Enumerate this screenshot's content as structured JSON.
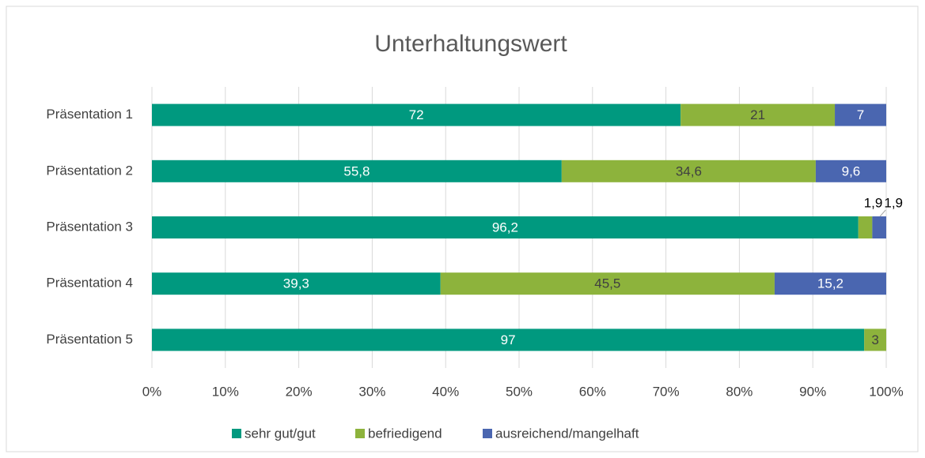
{
  "chart_data": {
    "type": "stacked_bar_horizontal",
    "title": "Unterhaltungswert",
    "categories": [
      "Präsentation 1",
      "Präsentation 2",
      "Präsentation 3",
      "Präsentation 4",
      "Präsentation 5"
    ],
    "series": [
      {
        "name": "sehr gut/gut",
        "color": "#00997f",
        "values": [
          72,
          55.8,
          96.2,
          39.3,
          97
        ],
        "value_labels": [
          "72",
          "55,8",
          "96,2",
          "39,3",
          "97"
        ]
      },
      {
        "name": "befriedigend",
        "color": "#8db33c",
        "values": [
          21,
          34.6,
          1.9,
          45.5,
          3
        ],
        "value_labels": [
          "21",
          "34,6",
          "1,9",
          "45,5",
          "3"
        ]
      },
      {
        "name": "ausreichend/mangelhaft",
        "color": "#4a66b0",
        "values": [
          7,
          9.6,
          1.9,
          15.2,
          null
        ],
        "value_labels": [
          "7",
          "9,6",
          "1,9",
          "15,2",
          null
        ]
      }
    ],
    "xlim": [
      0,
      100
    ],
    "xticks": [
      {
        "value": 0,
        "label": "0%"
      },
      {
        "value": 10,
        "label": "10%"
      },
      {
        "value": 20,
        "label": "20%"
      },
      {
        "value": 30,
        "label": "30%"
      },
      {
        "value": 40,
        "label": "40%"
      },
      {
        "value": 50,
        "label": "50%"
      },
      {
        "value": 60,
        "label": "60%"
      },
      {
        "value": 70,
        "label": "70%"
      },
      {
        "value": 80,
        "label": "80%"
      },
      {
        "value": 90,
        "label": "90%"
      },
      {
        "value": 100,
        "label": "100%"
      }
    ],
    "grid": true,
    "legend": "bottom"
  }
}
